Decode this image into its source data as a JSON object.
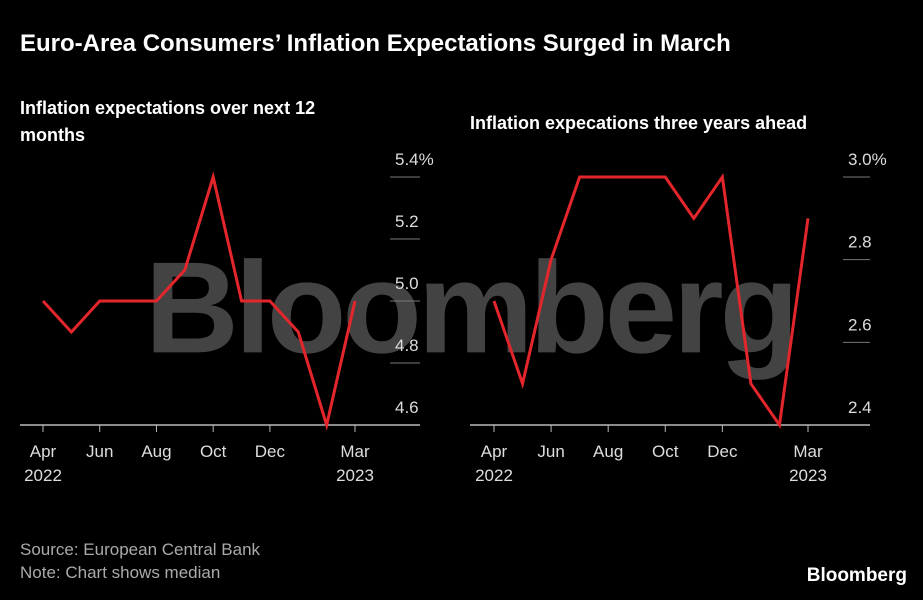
{
  "title": "Euro-Area Consumers’ Inflation Expectations Surged in March",
  "watermark": "Bloomberg",
  "source": "Source: European Central Bank",
  "note": "Note: Chart shows median",
  "brand": "Bloomberg",
  "chart_data": [
    {
      "type": "line",
      "title": "Inflation expectations over next 12 months",
      "categories": [
        "Apr 2022",
        null,
        "Jun",
        null,
        "Aug",
        null,
        "Oct",
        null,
        "Dec",
        null,
        null,
        "Mar 2023"
      ],
      "values": [
        5.0,
        4.9,
        5.0,
        5.0,
        5.0,
        5.1,
        5.4,
        5.0,
        5.0,
        4.9,
        4.6,
        5.0
      ],
      "color": "#e3262c",
      "ylim": [
        4.6,
        5.4
      ],
      "yticks": [
        4.6,
        4.8,
        {
          "value": 5,
          "label": "5.0"
        },
        5.2,
        {
          "value": 5.4,
          "label": "5.4%"
        }
      ]
    },
    {
      "type": "line",
      "title": "Inflation expecations three years ahead",
      "categories": [
        "Apr 2022",
        null,
        "Jun",
        null,
        "Aug",
        null,
        "Oct",
        null,
        "Dec",
        null,
        null,
        "Mar 2023"
      ],
      "values": [
        2.7,
        2.5,
        2.8,
        3.0,
        3.0,
        3.0,
        3.0,
        2.9,
        3.0,
        2.5,
        2.4,
        2.9
      ],
      "color": "#e3262c",
      "ylim": [
        2.4,
        3.0
      ],
      "yticks": [
        2.4,
        2.6,
        2.8,
        {
          "value": 3,
          "label": "3.0%"
        }
      ]
    }
  ]
}
